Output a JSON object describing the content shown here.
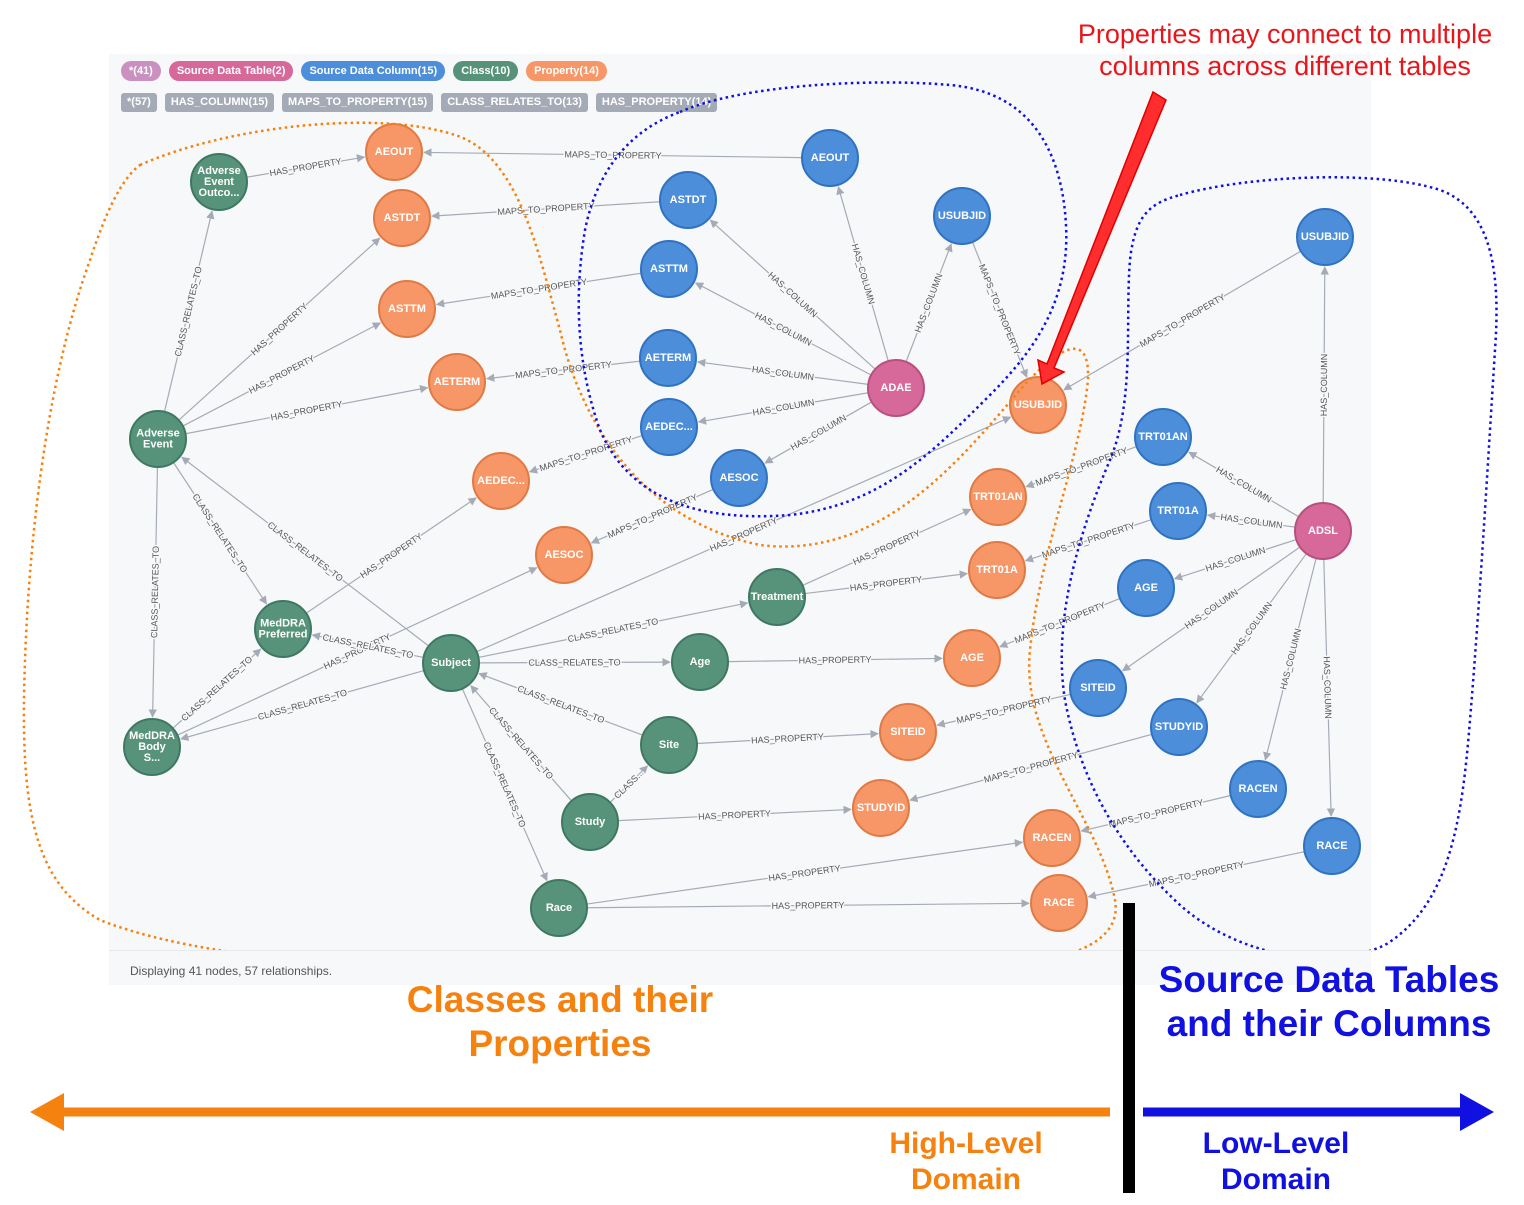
{
  "label_pills": [
    {
      "text": "*(41)",
      "color": "#c990c0"
    },
    {
      "text": "Source Data Table(2)",
      "color": "#d6699a"
    },
    {
      "text": "Source Data Column(15)",
      "color": "#4c8eda"
    },
    {
      "text": "Class(10)",
      "color": "#57937b"
    },
    {
      "text": "Property(14)",
      "color": "#f79767"
    }
  ],
  "relationship_tags": [
    "*(57)",
    "HAS_COLUMN(15)",
    "MAPS_TO_PROPERTY(15)",
    "CLASS_RELATES_TO(13)",
    "HAS_PROPERTY(14)"
  ],
  "status_text": "Displaying 41 nodes, 57 relationships.",
  "colors": {
    "table": "#d6699a",
    "column": "#4c8eda",
    "class": "#57937b",
    "property": "#f79767",
    "edge": "#a5abb6",
    "high_level": "#f5820f",
    "low_level": "#1010e0",
    "note": "#e8161b"
  },
  "nodes": [
    {
      "id": "ADAE",
      "label": "ADAE",
      "type": "table"
    },
    {
      "id": "ADSL",
      "label": "ADSL",
      "type": "table"
    },
    {
      "id": "c_AEOUT",
      "label": "AEOUT",
      "type": "column"
    },
    {
      "id": "c_ASTDT",
      "label": "ASTDT",
      "type": "column"
    },
    {
      "id": "c_ASTTM",
      "label": "ASTTM",
      "type": "column"
    },
    {
      "id": "c_AETERM",
      "label": "AETERM",
      "type": "column"
    },
    {
      "id": "c_AEDEC",
      "label": "AEDEC...",
      "type": "column"
    },
    {
      "id": "c_AESOC",
      "label": "AESOC",
      "type": "column"
    },
    {
      "id": "c_USUBJID_ADAE",
      "label": "USUBJID",
      "type": "column"
    },
    {
      "id": "c_USUBJID_ADSL",
      "label": "USUBJID",
      "type": "column"
    },
    {
      "id": "c_TRT01AN",
      "label": "TRT01AN",
      "type": "column"
    },
    {
      "id": "c_TRT01A",
      "label": "TRT01A",
      "type": "column"
    },
    {
      "id": "c_AGE",
      "label": "AGE",
      "type": "column"
    },
    {
      "id": "c_SITEID",
      "label": "SITEID",
      "type": "column"
    },
    {
      "id": "c_STUDYID",
      "label": "STUDYID",
      "type": "column"
    },
    {
      "id": "c_RACEN",
      "label": "RACEN",
      "type": "column"
    },
    {
      "id": "c_RACE",
      "label": "RACE",
      "type": "column"
    },
    {
      "id": "k_AEOutcome",
      "label": "Adverse Event Outco...",
      "type": "class"
    },
    {
      "id": "k_AE",
      "label": "Adverse Event",
      "type": "class"
    },
    {
      "id": "k_MedPref",
      "label": "MedDRA Preferred",
      "type": "class"
    },
    {
      "id": "k_MedBody",
      "label": "MedDRA Body S...",
      "type": "class"
    },
    {
      "id": "k_Subject",
      "label": "Subject",
      "type": "class"
    },
    {
      "id": "k_Treatment",
      "label": "Treatment",
      "type": "class"
    },
    {
      "id": "k_Age",
      "label": "Age",
      "type": "class"
    },
    {
      "id": "k_Site",
      "label": "Site",
      "type": "class"
    },
    {
      "id": "k_Study",
      "label": "Study",
      "type": "class"
    },
    {
      "id": "k_Race",
      "label": "Race",
      "type": "class"
    },
    {
      "id": "p_AEOUT",
      "label": "AEOUT",
      "type": "property"
    },
    {
      "id": "p_ASTDT",
      "label": "ASTDT",
      "type": "property"
    },
    {
      "id": "p_ASTTM",
      "label": "ASTTM",
      "type": "property"
    },
    {
      "id": "p_AETERM",
      "label": "AETERM",
      "type": "property"
    },
    {
      "id": "p_AEDEC",
      "label": "AEDEC...",
      "type": "property"
    },
    {
      "id": "p_AESOC",
      "label": "AESOC",
      "type": "property"
    },
    {
      "id": "p_USUBJID",
      "label": "USUBJID",
      "type": "property"
    },
    {
      "id": "p_TRT01AN",
      "label": "TRT01AN",
      "type": "property"
    },
    {
      "id": "p_TRT01A",
      "label": "TRT01A",
      "type": "property"
    },
    {
      "id": "p_AGE",
      "label": "AGE",
      "type": "property"
    },
    {
      "id": "p_SITEID",
      "label": "SITEID",
      "type": "property"
    },
    {
      "id": "p_STUDYID",
      "label": "STUDYID",
      "type": "property"
    },
    {
      "id": "p_RACEN",
      "label": "RACEN",
      "type": "property"
    },
    {
      "id": "p_RACE",
      "label": "RACE",
      "type": "property"
    }
  ],
  "edges": [
    {
      "from": "ADAE",
      "to": "c_AEOUT",
      "label": "HAS_COLUMN"
    },
    {
      "from": "ADAE",
      "to": "c_ASTDT",
      "label": "HAS_COLUMN"
    },
    {
      "from": "ADAE",
      "to": "c_ASTTM",
      "label": "HAS_COLUMN"
    },
    {
      "from": "ADAE",
      "to": "c_AETERM",
      "label": "HAS_COLUMN"
    },
    {
      "from": "ADAE",
      "to": "c_AEDEC",
      "label": "HAS_COLUMN"
    },
    {
      "from": "ADAE",
      "to": "c_AESOC",
      "label": "HAS_COLUMN"
    },
    {
      "from": "ADAE",
      "to": "c_USUBJID_ADAE",
      "label": "HAS_COLUMN"
    },
    {
      "from": "ADSL",
      "to": "c_USUBJID_ADSL",
      "label": "HAS_COLUMN"
    },
    {
      "from": "ADSL",
      "to": "c_TRT01AN",
      "label": "HAS_COLUMN"
    },
    {
      "from": "ADSL",
      "to": "c_TRT01A",
      "label": "HAS_COLUMN"
    },
    {
      "from": "ADSL",
      "to": "c_AGE",
      "label": "HAS_COLUMN"
    },
    {
      "from": "ADSL",
      "to": "c_SITEID",
      "label": "HAS_COLUMN"
    },
    {
      "from": "ADSL",
      "to": "c_STUDYID",
      "label": "HAS_COLUMN"
    },
    {
      "from": "ADSL",
      "to": "c_RACEN",
      "label": "HAS_COLUMN"
    },
    {
      "from": "ADSL",
      "to": "c_RACE",
      "label": "HAS_COLUMN"
    },
    {
      "from": "c_AEOUT",
      "to": "p_AEOUT",
      "label": "MAPS_TO_PROPERTY"
    },
    {
      "from": "c_ASTDT",
      "to": "p_ASTDT",
      "label": "MAPS_TO_PROPERTY"
    },
    {
      "from": "c_ASTTM",
      "to": "p_ASTTM",
      "label": "MAPS_TO_PROPERTY"
    },
    {
      "from": "c_AETERM",
      "to": "p_AETERM",
      "label": "MAPS_TO_PROPERTY"
    },
    {
      "from": "c_AEDEC",
      "to": "p_AEDEC",
      "label": "MAPS_TO_PROPERTY"
    },
    {
      "from": "c_AESOC",
      "to": "p_AESOC",
      "label": "MAPS_TO_PROPERTY"
    },
    {
      "from": "c_USUBJID_ADAE",
      "to": "p_USUBJID",
      "label": "MAPS_TO_PROPERTY"
    },
    {
      "from": "c_USUBJID_ADSL",
      "to": "p_USUBJID",
      "label": "MAPS_TO_PROPERTY"
    },
    {
      "from": "c_TRT01AN",
      "to": "p_TRT01AN",
      "label": "MAPS_TO_PROPERTY"
    },
    {
      "from": "c_TRT01A",
      "to": "p_TRT01A",
      "label": "MAPS_TO_PROPERTY"
    },
    {
      "from": "c_AGE",
      "to": "p_AGE",
      "label": "MAPS_TO_PROPERTY"
    },
    {
      "from": "c_SITEID",
      "to": "p_SITEID",
      "label": "MAPS_TO_PROPERTY"
    },
    {
      "from": "c_STUDYID",
      "to": "p_STUDYID",
      "label": "MAPS_TO_PROPERTY"
    },
    {
      "from": "c_RACEN",
      "to": "p_RACEN",
      "label": "MAPS_TO_PROPERTY"
    },
    {
      "from": "c_RACE",
      "to": "p_RACE",
      "label": "MAPS_TO_PROPERTY"
    },
    {
      "from": "k_AEOutcome",
      "to": "p_AEOUT",
      "label": "HAS_PROPERTY"
    },
    {
      "from": "k_AE",
      "to": "p_ASTDT",
      "label": "HAS_PROPERTY"
    },
    {
      "from": "k_AE",
      "to": "p_ASTTM",
      "label": "HAS_PROPERTY"
    },
    {
      "from": "k_AE",
      "to": "p_AETERM",
      "label": "HAS_PROPERTY"
    },
    {
      "from": "k_MedPref",
      "to": "p_AEDEC",
      "label": "HAS_PROPERTY"
    },
    {
      "from": "k_MedBody",
      "to": "p_AESOC",
      "label": "HAS_PROPERTY"
    },
    {
      "from": "k_Subject",
      "to": "p_USUBJID",
      "label": "HAS_PROPERTY"
    },
    {
      "from": "k_Treatment",
      "to": "p_TRT01AN",
      "label": "HAS_PROPERTY"
    },
    {
      "from": "k_Treatment",
      "to": "p_TRT01A",
      "label": "HAS_PROPERTY"
    },
    {
      "from": "k_Age",
      "to": "p_AGE",
      "label": "HAS_PROPERTY"
    },
    {
      "from": "k_Site",
      "to": "p_SITEID",
      "label": "HAS_PROPERTY"
    },
    {
      "from": "k_Study",
      "to": "p_STUDYID",
      "label": "HAS_PROPERTY"
    },
    {
      "from": "k_Race",
      "to": "p_RACEN",
      "label": "HAS_PROPERTY"
    },
    {
      "from": "k_Race",
      "to": "p_RACE",
      "label": "HAS_PROPERTY"
    },
    {
      "from": "k_AE",
      "to": "k_AEOutcome",
      "label": "CLASS_RELATES_TO"
    },
    {
      "from": "k_AE",
      "to": "k_MedPref",
      "label": "CLASS_RELATES_TO"
    },
    {
      "from": "k_AE",
      "to": "k_MedBody",
      "label": "CLASS_RELATES_TO"
    },
    {
      "from": "k_Subject",
      "to": "k_AE",
      "label": "CLASS_RELATES_TO"
    },
    {
      "from": "k_MedBody",
      "to": "k_MedPref",
      "label": "CLASS_RELATES_TO"
    },
    {
      "from": "k_Subject",
      "to": "k_MedPref",
      "label": "CLASS_RELATES_TO"
    },
    {
      "from": "k_Subject",
      "to": "k_MedBody",
      "label": "CLASS_RELATES_TO"
    },
    {
      "from": "k_Subject",
      "to": "k_Treatment",
      "label": "CLASS_RELATES_TO"
    },
    {
      "from": "k_Subject",
      "to": "k_Age",
      "label": "CLASS_RELATES_TO"
    },
    {
      "from": "k_Site",
      "to": "k_Subject",
      "label": "CLASS_RELATES_TO"
    },
    {
      "from": "k_Study",
      "to": "k_Subject",
      "label": "CLASS_RELATES_TO"
    },
    {
      "from": "k_Study",
      "to": "k_Site",
      "label": "CLASS..."
    },
    {
      "from": "k_Subject",
      "to": "k_Race",
      "label": "CLASS_RELATES_TO"
    }
  ],
  "annotations": {
    "note": "Properties may connect to multiple columns across different tables",
    "high_level_title": "Classes and their Properties",
    "low_level_title": "Source Data Tables and their Columns",
    "high_level_domain": "High-Level Domain",
    "low_level_domain": "Low-Level Domain"
  }
}
